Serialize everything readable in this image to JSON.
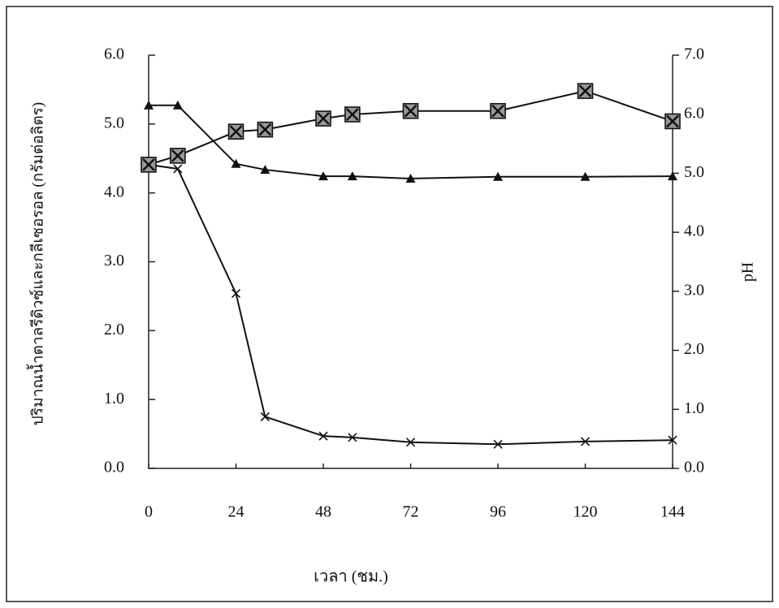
{
  "chart_data": {
    "type": "line",
    "x_label": "เวลา (ชม.)",
    "y_label": "ปริมาณน้ำตาลรีดิวซ์และกลีเซอรอล (กรัมต่อลิตร)",
    "y2_label": "pH",
    "x": [
      0,
      8,
      24,
      32,
      48,
      56,
      72,
      96,
      120,
      144
    ],
    "xlim": [
      0,
      144
    ],
    "xticks": [
      0,
      24,
      48,
      72,
      96,
      120,
      144
    ],
    "ylim": [
      0,
      6
    ],
    "yticks": [
      {
        "value": 0,
        "label": "0.0"
      },
      {
        "value": 1,
        "label": "1.0"
      },
      {
        "value": 2,
        "label": "2.0"
      },
      {
        "value": 3,
        "label": "3.0"
      },
      {
        "value": 4,
        "label": "4.0"
      },
      {
        "value": 5,
        "label": "5.0"
      },
      {
        "value": 6,
        "label": "6.0"
      }
    ],
    "y2lim": [
      0,
      7
    ],
    "y2ticks": [
      {
        "value": 0,
        "label": "0.0"
      },
      {
        "value": 1,
        "label": "1.0"
      },
      {
        "value": 2,
        "label": "2.0"
      },
      {
        "value": 3,
        "label": "3.0"
      },
      {
        "value": 4,
        "label": "4.0"
      },
      {
        "value": 5,
        "label": "5.0"
      },
      {
        "value": 6,
        "label": "6.0"
      },
      {
        "value": 7,
        "label": "7.0"
      }
    ],
    "series": [
      {
        "marker": "cross",
        "color": "#111111",
        "values": [
          4.41,
          4.35,
          2.54,
          0.75,
          0.47,
          0.45,
          0.38,
          0.35,
          0.39,
          0.41
        ]
      },
      {
        "marker": "boxed-cross",
        "color": "#111111",
        "values": [
          4.41,
          4.54,
          4.89,
          4.92,
          5.08,
          5.14,
          5.19,
          5.19,
          5.48,
          5.04
        ]
      },
      {
        "marker": "triangle",
        "color": "#111111",
        "axis": "y2",
        "values": [
          6.15,
          6.15,
          5.16,
          5.06,
          4.95,
          4.95,
          4.91,
          4.94,
          4.94,
          4.95
        ]
      }
    ]
  }
}
